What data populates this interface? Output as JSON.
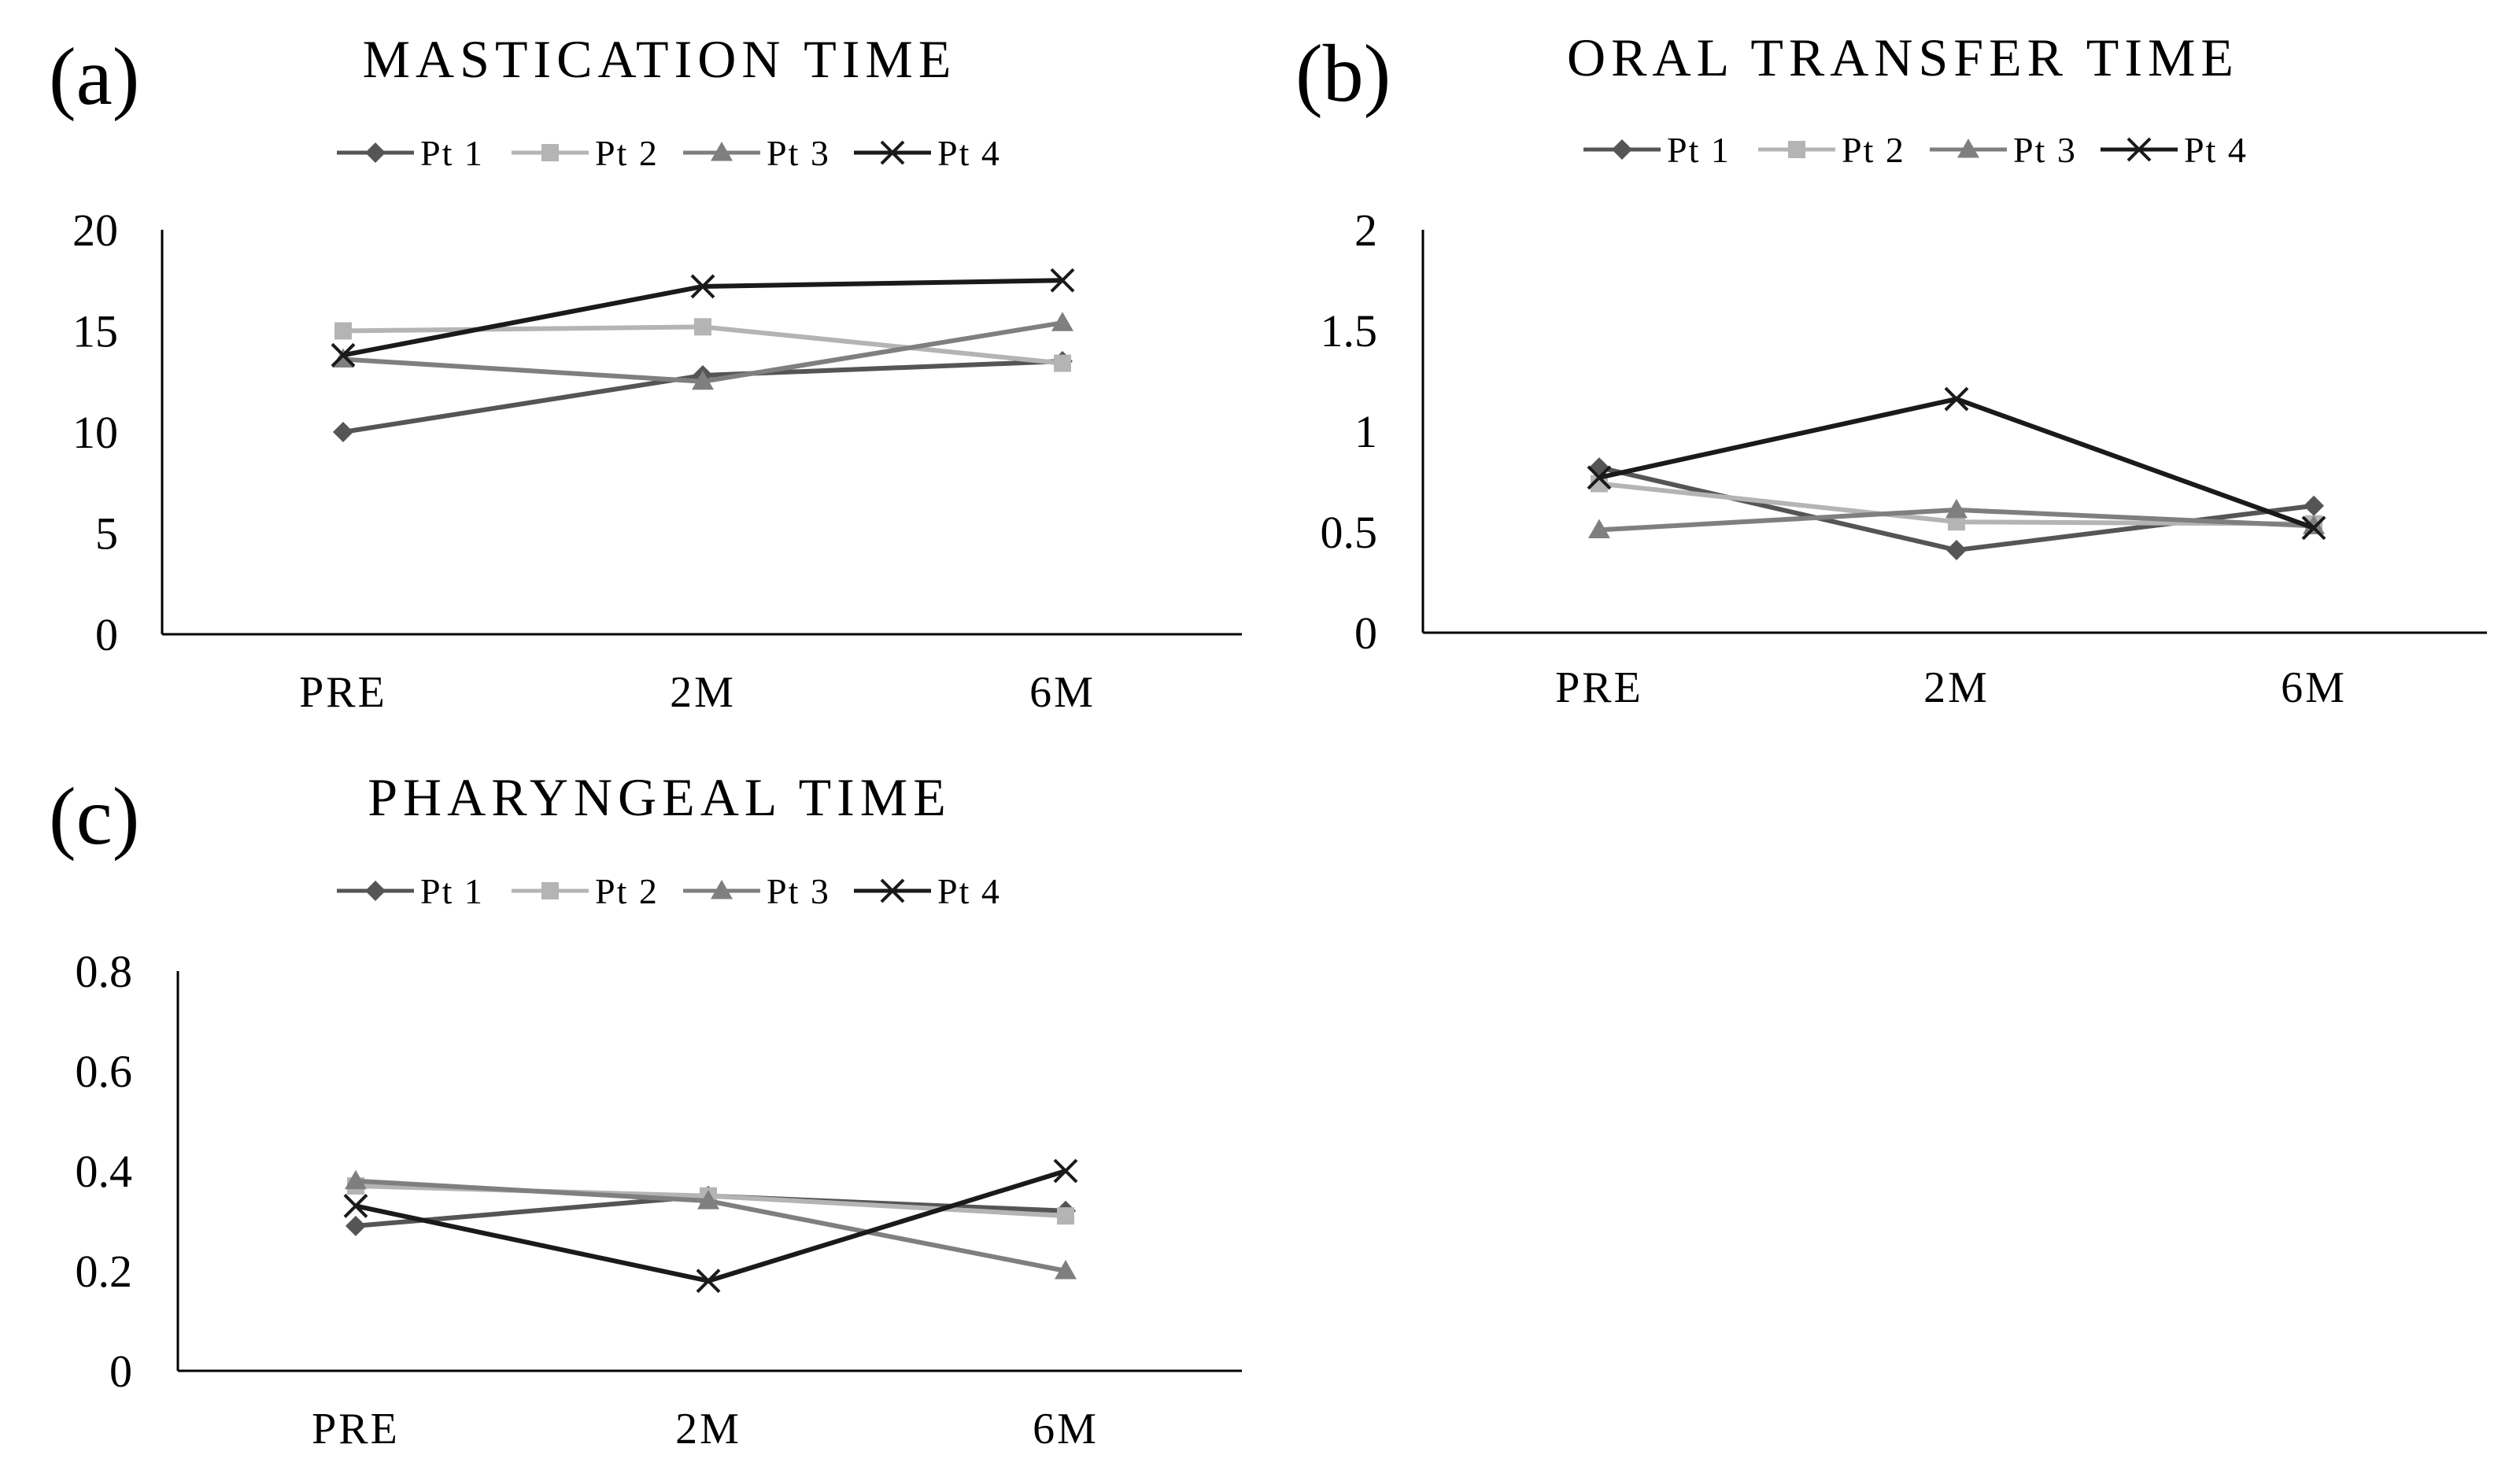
{
  "chart_data": [
    {
      "type": "line",
      "panel_label": "(a)",
      "title": "MASTICATION TIME",
      "categories": [
        "PRE",
        "2M",
        "6M"
      ],
      "ylim": [
        0,
        20
      ],
      "yticks": [
        "0",
        "5",
        "10",
        "15",
        "20"
      ],
      "ytick_values": [
        0,
        5,
        10,
        15,
        20
      ],
      "legend_position": "top",
      "series": [
        {
          "name": "Pt 1",
          "marker": "diamond",
          "color": "#555555",
          "values": [
            10.0,
            12.8,
            13.5
          ]
        },
        {
          "name": "Pt 2",
          "marker": "square",
          "color": "#b4b4b4",
          "values": [
            15.0,
            15.2,
            13.4
          ]
        },
        {
          "name": "Pt 3",
          "marker": "triangle",
          "color": "#7f7f7f",
          "values": [
            13.6,
            12.5,
            15.4
          ]
        },
        {
          "name": "Pt 4",
          "marker": "x",
          "color": "#1a1a1a",
          "values": [
            13.8,
            17.2,
            17.5
          ]
        }
      ]
    },
    {
      "type": "line",
      "panel_label": "(b)",
      "title": "ORAL TRANSFER TIME",
      "categories": [
        "PRE",
        "2M",
        "6M"
      ],
      "ylim": [
        0,
        2
      ],
      "yticks": [
        "0",
        "0.5",
        "1",
        "1.5",
        "2"
      ],
      "ytick_values": [
        0,
        0.5,
        1,
        1.5,
        2
      ],
      "legend_position": "top",
      "series": [
        {
          "name": "Pt 1",
          "marker": "diamond",
          "color": "#555555",
          "values": [
            0.82,
            0.41,
            0.63
          ]
        },
        {
          "name": "Pt 2",
          "marker": "square",
          "color": "#b4b4b4",
          "values": [
            0.74,
            0.55,
            0.54
          ]
        },
        {
          "name": "Pt 3",
          "marker": "triangle",
          "color": "#7f7f7f",
          "values": [
            0.51,
            0.61,
            0.53
          ]
        },
        {
          "name": "Pt 4",
          "marker": "x",
          "color": "#1a1a1a",
          "values": [
            0.77,
            1.16,
            0.52
          ]
        }
      ]
    },
    {
      "type": "line",
      "panel_label": "(c)",
      "title": "PHARYNGEAL TIME",
      "categories": [
        "PRE",
        "2M",
        "6M"
      ],
      "ylim": [
        0,
        0.8
      ],
      "yticks": [
        "0",
        "0.2",
        "0.4",
        "0.6",
        "0.8"
      ],
      "ytick_values": [
        0,
        0.2,
        0.4,
        0.6,
        0.8
      ],
      "legend_position": "top",
      "series": [
        {
          "name": "Pt 1",
          "marker": "diamond",
          "color": "#555555",
          "values": [
            0.29,
            0.35,
            0.32
          ]
        },
        {
          "name": "Pt 2",
          "marker": "square",
          "color": "#b4b4b4",
          "values": [
            0.37,
            0.35,
            0.31
          ]
        },
        {
          "name": "Pt 3",
          "marker": "triangle",
          "color": "#7f7f7f",
          "values": [
            0.38,
            0.34,
            0.2
          ]
        },
        {
          "name": "Pt 4",
          "marker": "x",
          "color": "#1a1a1a",
          "values": [
            0.33,
            0.18,
            0.4
          ]
        }
      ]
    }
  ]
}
